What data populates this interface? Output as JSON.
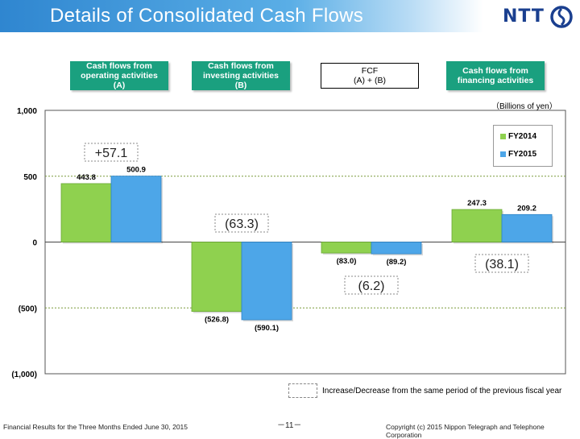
{
  "page": {
    "title": "Details of Consolidated Cash Flows",
    "logo_text": "NTT",
    "unit_label": "（Billions of yen）",
    "note_text": "Increase/Decrease from the same period of the previous fiscal year",
    "footer_left": "Financial Results for the Three Months Ended June 30, 2015",
    "footer_page": "－11－",
    "footer_right": "Copyright (c) 2015 Nippon Telegraph and Telephone Corporation"
  },
  "headers": [
    {
      "line1": "Cash flows from",
      "line2": "operating activities",
      "line3": "(A)"
    },
    {
      "line1": "Cash flows from",
      "line2": "investing activities",
      "line3": "(B)"
    },
    {
      "line1": "FCF",
      "line2": "(A) + (B)",
      "line3": ""
    },
    {
      "line1": "Cash flows from",
      "line2": "financing activities",
      "line3": ""
    }
  ],
  "colors": {
    "fy2014": "#8fd14f",
    "fy2015": "#4da6e8",
    "banner": "#2f86d0",
    "header_green": "#1aa07f"
  },
  "chart_data": {
    "type": "bar",
    "categories": [
      "Cash flows from operating activities (A)",
      "Cash flows from investing activities (B)",
      "FCF (A) + (B)",
      "Cash flows from financing activities"
    ],
    "series": [
      {
        "name": "FY2014",
        "values": [
          443.8,
          -526.8,
          -83.0,
          247.3
        ],
        "labels": [
          "443.8",
          "(526.8)",
          "(83.0)",
          "247.3"
        ]
      },
      {
        "name": "FY2015",
        "values": [
          500.9,
          -590.1,
          -89.2,
          209.2
        ],
        "labels": [
          "500.9",
          "(590.1)",
          "(89.2)",
          "209.2"
        ]
      }
    ],
    "changes": [
      {
        "label": "+57.1",
        "value": 57.1
      },
      {
        "label": "(63.3)",
        "value": -63.3
      },
      {
        "label": "(6.2)",
        "value": -6.2
      },
      {
        "label": "(38.1)",
        "value": -38.1
      }
    ],
    "ylim": [
      -1000,
      1000
    ],
    "yticks": [
      1000,
      500,
      0,
      -500,
      -1000
    ],
    "ytick_labels": [
      "1,000",
      "500",
      "0",
      "(500)",
      "(1,000)"
    ],
    "ylabel": "",
    "xlabel": "",
    "legend_position": "top-right",
    "grid": true
  }
}
